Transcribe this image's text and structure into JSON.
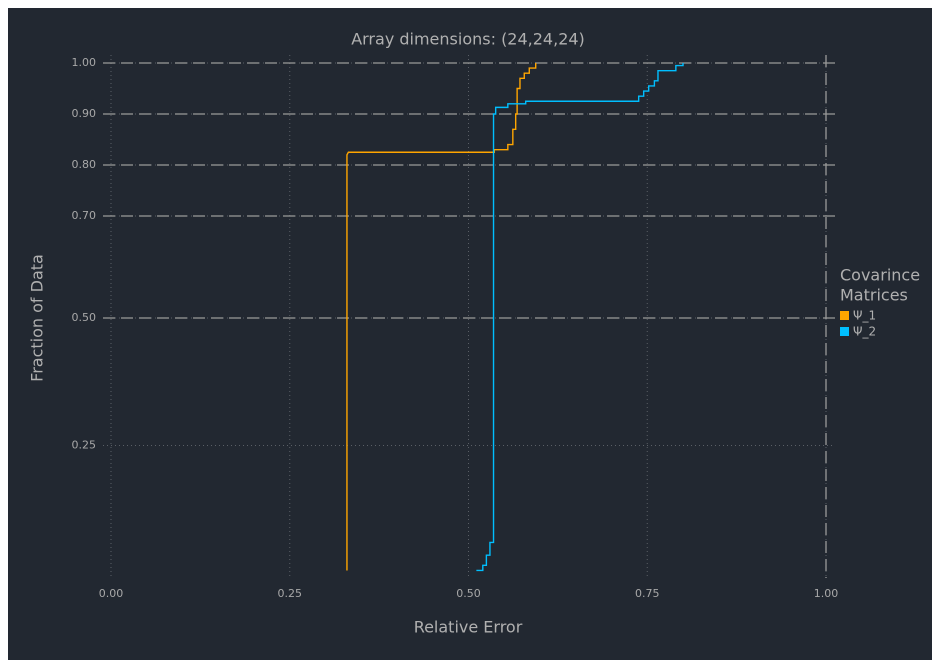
{
  "chart_data": {
    "type": "line",
    "title": "Array dimensions: (24,24,24)",
    "xlabel": "Relative Error",
    "ylabel": "Fraction of Data",
    "legend_title": [
      "Covarince",
      "Matrices"
    ],
    "legend": "right",
    "grid": true,
    "hlines": [
      0.5,
      0.7,
      0.8,
      0.9,
      1.0
    ],
    "vlines": [
      1.0
    ],
    "xlim": [
      0,
      1
    ],
    "ylim": [
      0,
      1
    ],
    "xticks": [
      {
        "value": 0,
        "label": "0.00"
      },
      {
        "value": 0.25,
        "label": "0.25"
      },
      {
        "value": 0.5,
        "label": "0.50"
      },
      {
        "value": 0.75,
        "label": "0.75"
      },
      {
        "value": 1,
        "label": "1.00"
      }
    ],
    "yticks": [
      {
        "value": 0.25,
        "label": "0.25"
      },
      {
        "value": 0.5,
        "label": "0.50"
      },
      {
        "value": 0.7,
        "label": "0.70"
      },
      {
        "value": 0.8,
        "label": "0.80"
      },
      {
        "value": 0.9,
        "label": "0.90"
      },
      {
        "value": 1,
        "label": "1.00"
      }
    ],
    "series": [
      {
        "name": "Ψ_1",
        "color": "#ffa500",
        "x": [
          0.33,
          0.33,
          0.332,
          0.536,
          0.536,
          0.555,
          0.555,
          0.562,
          0.562,
          0.566,
          0.566,
          0.568,
          0.568,
          0.572,
          0.572,
          0.578,
          0.578,
          0.585,
          0.585,
          0.594,
          0.594
        ],
        "values": [
          0.005,
          0.82,
          0.825,
          0.825,
          0.83,
          0.83,
          0.84,
          0.84,
          0.87,
          0.87,
          0.9,
          0.9,
          0.95,
          0.95,
          0.97,
          0.97,
          0.98,
          0.98,
          0.99,
          0.99,
          1.0
        ]
      },
      {
        "name": "Ψ_2",
        "color": "#00bfff",
        "x": [
          0.511,
          0.52,
          0.52,
          0.525,
          0.525,
          0.53,
          0.53,
          0.535,
          0.535,
          0.538,
          0.538,
          0.555,
          0.555,
          0.58,
          0.58,
          0.738,
          0.738,
          0.745,
          0.745,
          0.752,
          0.752,
          0.76,
          0.76,
          0.765,
          0.765,
          0.79,
          0.79,
          0.8,
          0.8
        ],
        "values": [
          0.005,
          0.005,
          0.015,
          0.015,
          0.035,
          0.035,
          0.06,
          0.06,
          0.9,
          0.9,
          0.913,
          0.913,
          0.92,
          0.92,
          0.925,
          0.925,
          0.935,
          0.935,
          0.945,
          0.945,
          0.955,
          0.955,
          0.965,
          0.965,
          0.985,
          0.985,
          0.995,
          0.995,
          1.0
        ]
      }
    ]
  }
}
